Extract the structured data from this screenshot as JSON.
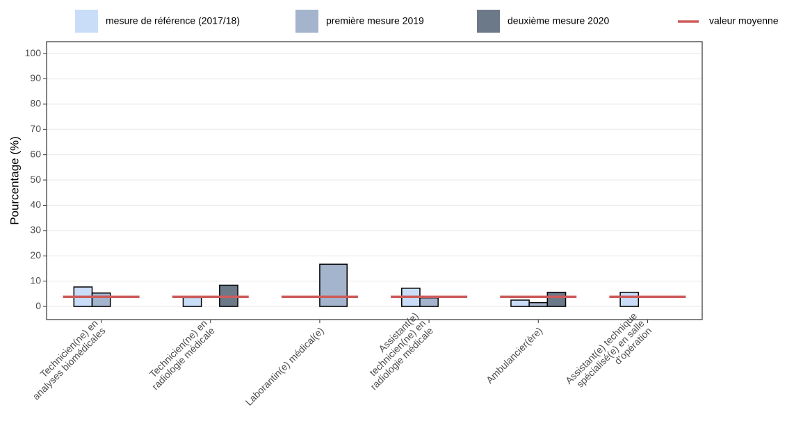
{
  "chart_data": {
    "type": "bar",
    "categories": [
      "Technicien(ne) en\nanalyses biomédicales",
      "Technicien(ne) en\nradiologie médicale",
      "Laborantin(e) médical(e)",
      "Assistant(e)\ntechnicien(ne) en\nradiologie médicale",
      "Ambulancier(ère)",
      "Assistant(e) technique\nspécialisé(e) en salle\nd'opération"
    ],
    "series": [
      {
        "name": "mesure de référence (2017/18)",
        "color": "#c9ddf9",
        "values": [
          7.7,
          3.5,
          0,
          7.2,
          2.5,
          5.6
        ]
      },
      {
        "name": "première mesure 2019",
        "color": "#a4b4cd",
        "values": [
          5.3,
          0,
          16.7,
          3.4,
          1.5,
          0
        ]
      },
      {
        "name": "deuxième mesure 2020",
        "color": "#6c7989",
        "values": [
          0,
          8.4,
          null,
          0,
          5.6,
          0
        ]
      }
    ],
    "reference_line": {
      "name": "valeur moyenne",
      "color": "#cd5c5c",
      "values": [
        3.8,
        3.8,
        3.8,
        3.8,
        3.8,
        3.8
      ]
    },
    "y_label": "Pourcentage (%)",
    "ylim": [
      -5.2,
      104.7
    ],
    "yticks": [
      0,
      10,
      20,
      30,
      40,
      50,
      60,
      70,
      80,
      90,
      100
    ],
    "grid": true
  }
}
